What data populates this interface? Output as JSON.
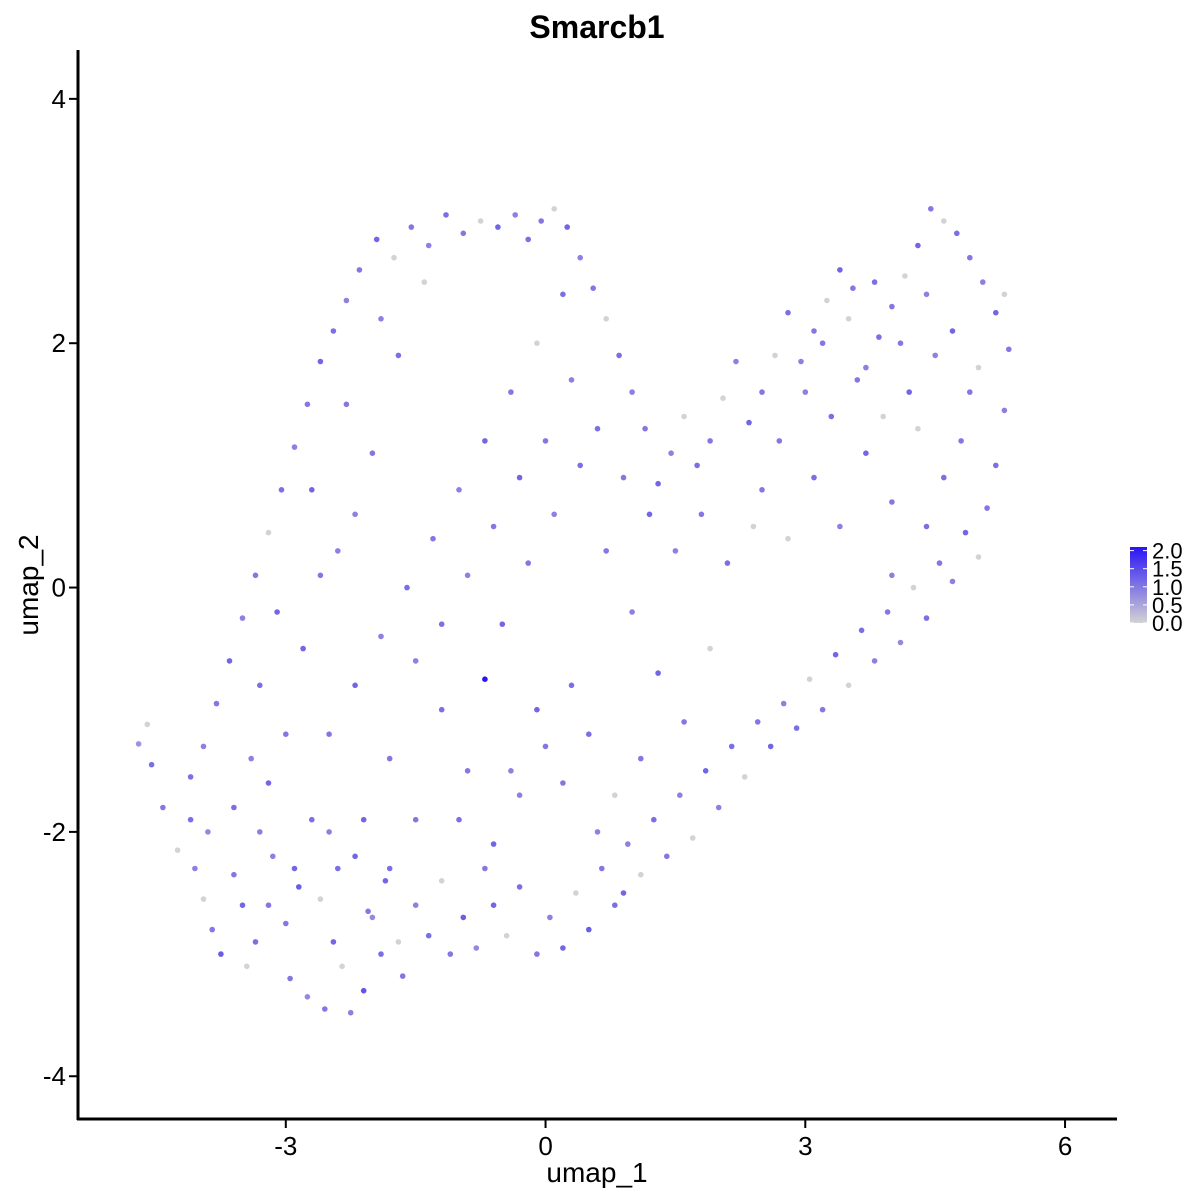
{
  "chart_data": {
    "type": "scatter",
    "title": "Smarcb1",
    "xlabel": "umap_1",
    "ylabel": "umap_2",
    "xlim": [
      -5.4,
      6.6
    ],
    "ylim": [
      -4.35,
      4.4
    ],
    "xticks": [
      -3,
      0,
      3,
      6
    ],
    "yticks": [
      -4,
      -2,
      0,
      2,
      4
    ],
    "xtick_labels": [
      "-3",
      "0",
      "3",
      "6"
    ],
    "ytick_labels": [
      "-4",
      "-2",
      "0",
      "2",
      "4"
    ],
    "grid": false,
    "color_scale": {
      "low_color": "#d3d3d3",
      "high_color": "#2a14f5",
      "min": 0.0,
      "max": 2.1,
      "ticks": [
        0.0,
        0.5,
        1.0,
        1.5,
        2.0
      ],
      "tick_labels": [
        "0.0",
        "0.5",
        "1.0",
        "1.5",
        "2.0"
      ]
    },
    "legend_position": "right",
    "points": [
      [
        -4.7,
        -1.28,
        0.7
      ],
      [
        -4.6,
        -1.12,
        0.0
      ],
      [
        -4.55,
        -1.45,
        1.1
      ],
      [
        -4.42,
        -1.8,
        1.0
      ],
      [
        -4.25,
        -2.15,
        0.0
      ],
      [
        -4.1,
        -1.9,
        1.1
      ],
      [
        -4.05,
        -2.3,
        0.9
      ],
      [
        -3.95,
        -2.55,
        0.0
      ],
      [
        -3.9,
        -2.0,
        0.8
      ],
      [
        -3.85,
        -2.8,
        1.0
      ],
      [
        -3.75,
        -3.0,
        1.3
      ],
      [
        -3.6,
        -2.35,
        1.0
      ],
      [
        -3.5,
        -2.6,
        1.2
      ],
      [
        -3.45,
        -3.1,
        0.0
      ],
      [
        -3.35,
        -2.9,
        1.1
      ],
      [
        -3.3,
        -2.0,
        0.9
      ],
      [
        -3.2,
        -1.6,
        1.2
      ],
      [
        -3.15,
        -2.2,
        0.9
      ],
      [
        -3.0,
        -2.75,
        1.0
      ],
      [
        -2.95,
        -3.2,
        1.0
      ],
      [
        -2.85,
        -2.45,
        1.3
      ],
      [
        -2.75,
        -3.35,
        0.8
      ],
      [
        -2.7,
        -1.9,
        1.1
      ],
      [
        -2.6,
        -2.55,
        0.0
      ],
      [
        -2.55,
        -3.45,
        1.0
      ],
      [
        -2.45,
        -2.9,
        1.2
      ],
      [
        -2.35,
        -3.1,
        0.0
      ],
      [
        -2.25,
        -3.48,
        0.9
      ],
      [
        -2.2,
        -2.2,
        1.2
      ],
      [
        -2.1,
        -3.3,
        1.4
      ],
      [
        -2.0,
        -2.7,
        0.8
      ],
      [
        -1.9,
        -3.0,
        1.1
      ],
      [
        -1.85,
        -2.4,
        1.2
      ],
      [
        -1.7,
        -2.9,
        0.0
      ],
      [
        -1.65,
        -3.18,
        1.0
      ],
      [
        -1.5,
        -2.6,
        0.9
      ],
      [
        -1.35,
        -2.85,
        1.1
      ],
      [
        -1.2,
        -2.4,
        0.0
      ],
      [
        -1.1,
        -3.0,
        1.0
      ],
      [
        -0.95,
        -2.7,
        1.3
      ],
      [
        -0.8,
        -2.95,
        0.8
      ],
      [
        -0.6,
        -2.6,
        1.2
      ],
      [
        -0.45,
        -2.85,
        0.0
      ],
      [
        -0.3,
        -2.45,
        1.1
      ],
      [
        -0.1,
        -3.0,
        1.0
      ],
      [
        0.05,
        -2.7,
        0.9
      ],
      [
        0.2,
        -2.95,
        1.2
      ],
      [
        0.35,
        -2.5,
        0.0
      ],
      [
        0.5,
        -2.8,
        1.3
      ],
      [
        0.65,
        -2.3,
        1.0
      ],
      [
        0.8,
        -2.6,
        1.1
      ],
      [
        0.95,
        -2.1,
        0.9
      ],
      [
        1.1,
        -2.35,
        0.0
      ],
      [
        1.25,
        -1.9,
        1.1
      ],
      [
        1.4,
        -2.2,
        1.0
      ],
      [
        1.55,
        -1.7,
        0.9
      ],
      [
        1.7,
        -2.05,
        0.0
      ],
      [
        1.85,
        -1.5,
        1.2
      ],
      [
        2.0,
        -1.8,
        0.9
      ],
      [
        2.15,
        -1.3,
        1.1
      ],
      [
        2.3,
        -1.55,
        0.0
      ],
      [
        2.45,
        -1.1,
        1.0
      ],
      [
        2.6,
        -1.3,
        1.2
      ],
      [
        2.75,
        -0.95,
        0.9
      ],
      [
        2.9,
        -1.15,
        1.1
      ],
      [
        3.05,
        -0.75,
        0.0
      ],
      [
        3.2,
        -1.0,
        1.0
      ],
      [
        3.35,
        -0.55,
        1.2
      ],
      [
        3.5,
        -0.8,
        0.0
      ],
      [
        3.65,
        -0.35,
        1.1
      ],
      [
        3.8,
        -0.6,
        0.9
      ],
      [
        3.95,
        -0.2,
        1.0
      ],
      [
        4.1,
        -0.45,
        0.8
      ],
      [
        4.25,
        0.0,
        0.0
      ],
      [
        4.4,
        -0.25,
        1.1
      ],
      [
        4.55,
        0.2,
        1.0
      ],
      [
        4.7,
        0.05,
        0.9
      ],
      [
        4.85,
        0.45,
        1.2
      ],
      [
        5.0,
        0.25,
        0.0
      ],
      [
        5.1,
        0.65,
        1.0
      ],
      [
        5.2,
        1.0,
        1.1
      ],
      [
        5.3,
        1.45,
        0.9
      ],
      [
        5.35,
        1.95,
        1.0
      ],
      [
        5.3,
        2.4,
        0.0
      ],
      [
        5.2,
        2.25,
        1.2
      ],
      [
        5.05,
        2.5,
        0.9
      ],
      [
        4.9,
        2.7,
        1.0
      ],
      [
        4.75,
        2.9,
        1.1
      ],
      [
        4.6,
        3.0,
        0.0
      ],
      [
        4.45,
        3.1,
        1.0
      ],
      [
        4.3,
        2.8,
        1.2
      ],
      [
        4.15,
        2.55,
        0.0
      ],
      [
        4.0,
        2.3,
        1.0
      ],
      [
        3.85,
        2.05,
        1.1
      ],
      [
        3.7,
        1.8,
        0.9
      ],
      [
        3.55,
        2.45,
        1.0
      ],
      [
        3.4,
        2.6,
        1.2
      ],
      [
        3.25,
        2.35,
        0.0
      ],
      [
        3.1,
        2.1,
        1.0
      ],
      [
        2.95,
        1.85,
        0.9
      ],
      [
        2.8,
        2.25,
        1.1
      ],
      [
        2.65,
        1.9,
        0.0
      ],
      [
        2.5,
        1.6,
        1.0
      ],
      [
        2.35,
        1.35,
        1.2
      ],
      [
        2.2,
        1.85,
        0.9
      ],
      [
        2.05,
        1.55,
        0.0
      ],
      [
        1.9,
        1.2,
        1.0
      ],
      [
        1.75,
        1.0,
        1.1
      ],
      [
        1.6,
        1.4,
        0.0
      ],
      [
        1.45,
        1.1,
        0.9
      ],
      [
        1.3,
        0.85,
        1.2
      ],
      [
        1.15,
        1.3,
        1.0
      ],
      [
        1.0,
        1.6,
        0.9
      ],
      [
        0.85,
        1.9,
        1.1
      ],
      [
        0.7,
        2.2,
        0.0
      ],
      [
        0.55,
        2.45,
        1.0
      ],
      [
        0.4,
        2.7,
        0.9
      ],
      [
        0.25,
        2.95,
        1.2
      ],
      [
        0.1,
        3.1,
        0.0
      ],
      [
        -0.05,
        3.0,
        1.0
      ],
      [
        -0.2,
        2.85,
        1.1
      ],
      [
        -0.35,
        3.05,
        0.9
      ],
      [
        -0.55,
        2.95,
        1.2
      ],
      [
        -0.75,
        3.0,
        0.0
      ],
      [
        -0.95,
        2.9,
        1.0
      ],
      [
        -1.15,
        3.05,
        1.1
      ],
      [
        -1.35,
        2.8,
        0.9
      ],
      [
        -1.55,
        2.95,
        1.0
      ],
      [
        -1.75,
        2.7,
        0.0
      ],
      [
        -1.95,
        2.85,
        1.2
      ],
      [
        -2.15,
        2.6,
        1.0
      ],
      [
        -2.3,
        2.35,
        0.9
      ],
      [
        -2.45,
        2.1,
        1.1
      ],
      [
        -2.6,
        1.85,
        1.2
      ],
      [
        -2.75,
        1.5,
        1.0
      ],
      [
        -2.9,
        1.15,
        0.9
      ],
      [
        -3.05,
        0.8,
        1.1
      ],
      [
        -3.2,
        0.45,
        0.0
      ],
      [
        -3.35,
        0.1,
        1.0
      ],
      [
        -3.5,
        -0.25,
        0.9
      ],
      [
        -3.65,
        -0.6,
        1.2
      ],
      [
        -3.8,
        -0.95,
        1.0
      ],
      [
        -3.95,
        -1.3,
        0.9
      ],
      [
        -4.1,
        -1.55,
        1.1
      ],
      [
        -2.5,
        -1.2,
        1.0
      ],
      [
        -2.2,
        -0.8,
        1.2
      ],
      [
        -1.9,
        -0.4,
        0.9
      ],
      [
        -1.6,
        0.0,
        1.1
      ],
      [
        -1.3,
        0.4,
        1.0
      ],
      [
        -1.0,
        0.8,
        0.9
      ],
      [
        -0.7,
        1.2,
        1.2
      ],
      [
        -0.4,
        1.6,
        1.0
      ],
      [
        -0.1,
        2.0,
        0.0
      ],
      [
        0.2,
        2.4,
        1.1
      ],
      [
        -2.8,
        -0.5,
        1.2
      ],
      [
        -2.4,
        0.3,
        0.9
      ],
      [
        -2.0,
        1.1,
        1.0
      ],
      [
        -1.7,
        1.9,
        1.1
      ],
      [
        -1.4,
        2.5,
        0.0
      ],
      [
        -0.7,
        -0.75,
        2.1
      ],
      [
        -0.5,
        -0.3,
        1.2
      ],
      [
        -0.2,
        0.2,
        1.0
      ],
      [
        0.1,
        0.6,
        0.9
      ],
      [
        0.4,
        1.0,
        1.1
      ],
      [
        0.7,
        0.3,
        1.0
      ],
      [
        1.0,
        -0.2,
        0.9
      ],
      [
        1.3,
        -0.7,
        1.2
      ],
      [
        1.6,
        -1.1,
        1.0
      ],
      [
        1.9,
        -0.5,
        0.0
      ],
      [
        0.3,
        -0.8,
        1.1
      ],
      [
        0.0,
        -1.3,
        1.0
      ],
      [
        -0.3,
        -1.7,
        0.9
      ],
      [
        -0.6,
        -2.1,
        1.2
      ],
      [
        -0.9,
        -1.5,
        1.0
      ],
      [
        -1.2,
        -1.0,
        1.1
      ],
      [
        -1.5,
        -0.6,
        0.9
      ],
      [
        -1.8,
        -1.4,
        1.0
      ],
      [
        -2.1,
        -1.9,
        1.2
      ],
      [
        -2.4,
        -2.3,
        1.1
      ],
      [
        -3.0,
        -1.2,
        1.0
      ],
      [
        -3.3,
        -0.8,
        1.1
      ],
      [
        -2.7,
        0.8,
        1.2
      ],
      [
        -2.3,
        1.5,
        1.0
      ],
      [
        -1.9,
        2.2,
        0.9
      ],
      [
        2.5,
        0.8,
        1.0
      ],
      [
        2.8,
        0.4,
        0.0
      ],
      [
        3.1,
        0.9,
        1.1
      ],
      [
        3.4,
        0.5,
        0.9
      ],
      [
        3.7,
        1.1,
        1.2
      ],
      [
        4.0,
        0.7,
        1.0
      ],
      [
        4.3,
        1.3,
        0.0
      ],
      [
        4.6,
        0.9,
        1.1
      ],
      [
        4.9,
        1.6,
        1.0
      ],
      [
        4.5,
        1.9,
        0.9
      ],
      [
        4.2,
        1.6,
        1.2
      ],
      [
        3.9,
        1.4,
        0.0
      ],
      [
        3.6,
        1.7,
        1.0
      ],
      [
        3.3,
        1.4,
        1.1
      ],
      [
        3.0,
        1.6,
        0.9
      ],
      [
        2.7,
        1.2,
        1.0
      ],
      [
        2.4,
        0.5,
        0.0
      ],
      [
        2.1,
        0.2,
        1.1
      ],
      [
        1.8,
        0.6,
        1.0
      ],
      [
        1.5,
        0.3,
        0.9
      ],
      [
        1.2,
        0.6,
        1.2
      ],
      [
        0.9,
        0.9,
        1.0
      ],
      [
        0.6,
        1.3,
        1.1
      ],
      [
        0.3,
        1.7,
        0.9
      ],
      [
        0.0,
        1.2,
        1.0
      ],
      [
        -0.3,
        0.9,
        1.2
      ],
      [
        -0.6,
        0.5,
        1.0
      ],
      [
        -0.9,
        0.1,
        0.9
      ],
      [
        -1.2,
        -0.3,
        1.1
      ],
      [
        -1.5,
        -1.9,
        1.0
      ],
      [
        -1.8,
        -2.3,
        1.1
      ],
      [
        -2.05,
        -2.65,
        1.0
      ],
      [
        -2.5,
        -2.0,
        0.9
      ],
      [
        -2.9,
        -2.3,
        1.2
      ],
      [
        -3.2,
        -2.6,
        1.0
      ],
      [
        -3.6,
        -1.8,
        1.1
      ],
      [
        -3.4,
        -1.4,
        0.9
      ],
      [
        -3.1,
        -0.2,
        1.2
      ],
      [
        -2.6,
        0.1,
        1.0
      ],
      [
        -2.2,
        0.6,
        0.9
      ],
      [
        -1.0,
        -1.9,
        1.1
      ],
      [
        -0.7,
        -2.3,
        1.0
      ],
      [
        -0.4,
        -1.5,
        0.9
      ],
      [
        -0.1,
        -1.0,
        1.2
      ],
      [
        0.2,
        -1.6,
        1.0
      ],
      [
        0.5,
        -1.2,
        1.1
      ],
      [
        0.8,
        -1.7,
        0.0
      ],
      [
        1.1,
        -1.4,
        1.0
      ],
      [
        0.6,
        -2.0,
        0.9
      ],
      [
        0.9,
        -2.5,
        1.2
      ],
      [
        3.2,
        2.0,
        1.0
      ],
      [
        3.5,
        2.2,
        0.0
      ],
      [
        3.8,
        2.5,
        1.1
      ],
      [
        4.1,
        2.0,
        1.0
      ],
      [
        4.4,
        2.4,
        0.9
      ],
      [
        4.7,
        2.1,
        1.2
      ],
      [
        5.0,
        1.8,
        0.0
      ],
      [
        4.8,
        1.2,
        1.0
      ],
      [
        4.4,
        0.5,
        1.1
      ],
      [
        4.0,
        0.1,
        0.9
      ]
    ]
  }
}
